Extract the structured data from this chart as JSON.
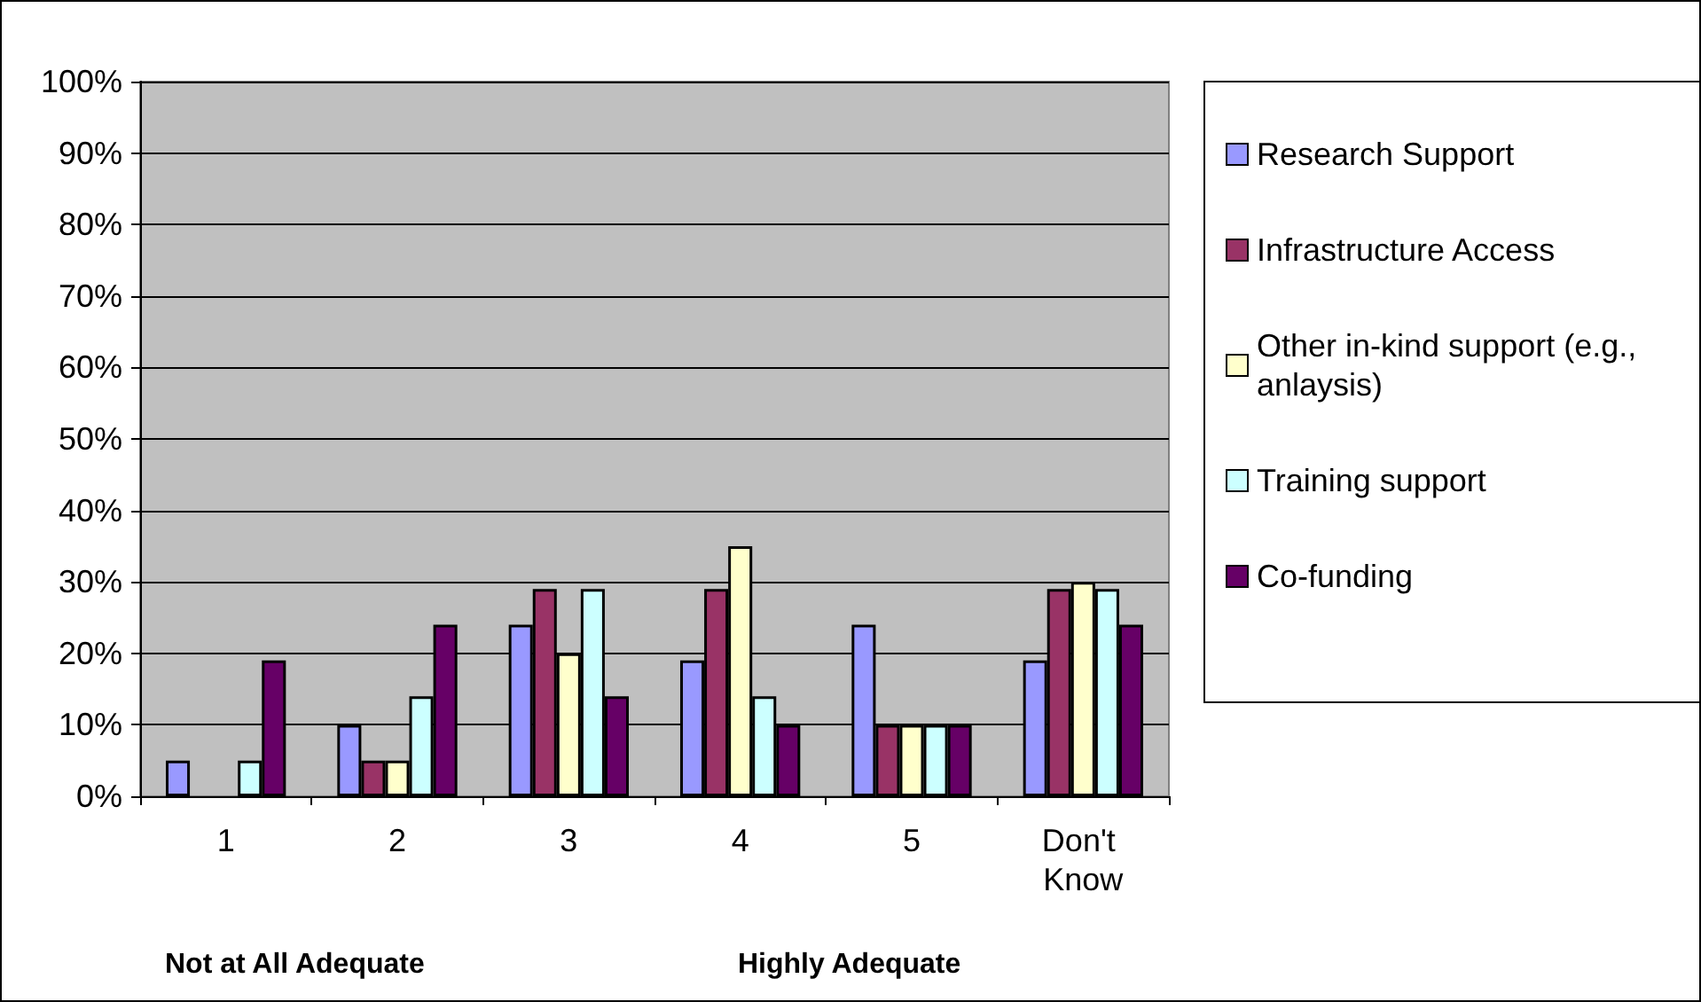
{
  "chart_data": {
    "type": "bar",
    "categories": [
      "1",
      "2",
      "3",
      "4",
      "5",
      "Don't Know"
    ],
    "series": [
      {
        "name": "Research Support",
        "color": "#9999ff",
        "values": [
          5,
          10,
          24,
          19,
          24,
          19
        ]
      },
      {
        "name": "Infrastructure Access",
        "color": "#993366",
        "values": [
          0,
          5,
          29,
          29,
          10,
          29
        ]
      },
      {
        "name": "Other in-kind support (e.g., anlaysis)",
        "color": "#ffffcc",
        "values": [
          0,
          5,
          20,
          35,
          10,
          30
        ]
      },
      {
        "name": "Training support",
        "color": "#ccffff",
        "values": [
          5,
          14,
          29,
          14,
          10,
          29
        ]
      },
      {
        "name": "Co-funding",
        "color": "#660066",
        "values": [
          19,
          24,
          14,
          10,
          10,
          24
        ]
      }
    ],
    "ylim": [
      0,
      100
    ],
    "yticks": [
      {
        "value": 0,
        "label": "0%"
      },
      {
        "value": 10,
        "label": "10%"
      },
      {
        "value": 20,
        "label": "20%"
      },
      {
        "value": 30,
        "label": "30%"
      },
      {
        "value": 40,
        "label": "40%"
      },
      {
        "value": 50,
        "label": "50%"
      },
      {
        "value": 60,
        "label": "60%"
      },
      {
        "value": 70,
        "label": "70%"
      },
      {
        "value": 80,
        "label": "80%"
      },
      {
        "value": 90,
        "label": "90%"
      },
      {
        "value": 100,
        "label": "100%"
      }
    ],
    "annotations": [
      "Not at All Adequate",
      "Highly Adequate"
    ],
    "grid": "y",
    "legend": "right"
  }
}
